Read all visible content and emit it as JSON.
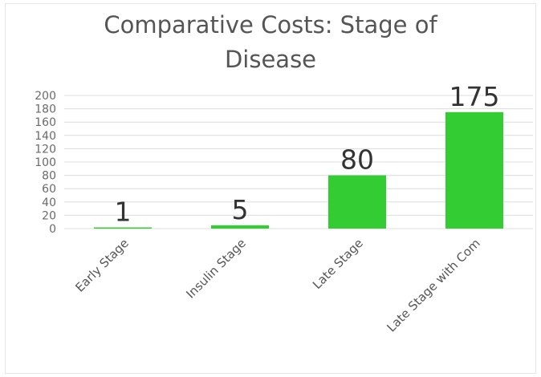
{
  "chart_data": {
    "type": "bar",
    "title": "Comparative Costs: Stage of Disease",
    "title_lines": [
      "Comparative Costs: Stage of",
      "Disease"
    ],
    "categories": [
      "Early Stage",
      "Insulin Stage",
      "Late Stage",
      "Late Stage with Com"
    ],
    "values": [
      1,
      5,
      80,
      175
    ],
    "data_labels": [
      "1",
      "5",
      "80",
      "175"
    ],
    "xlabel": "",
    "ylabel": "",
    "ylim": [
      0,
      200
    ],
    "yticks": [
      "0",
      "20",
      "40",
      "60",
      "80",
      "100",
      "120",
      "140",
      "160",
      "180",
      "200"
    ],
    "grid": true,
    "legend": "none",
    "bar_color": "#33cc33"
  }
}
